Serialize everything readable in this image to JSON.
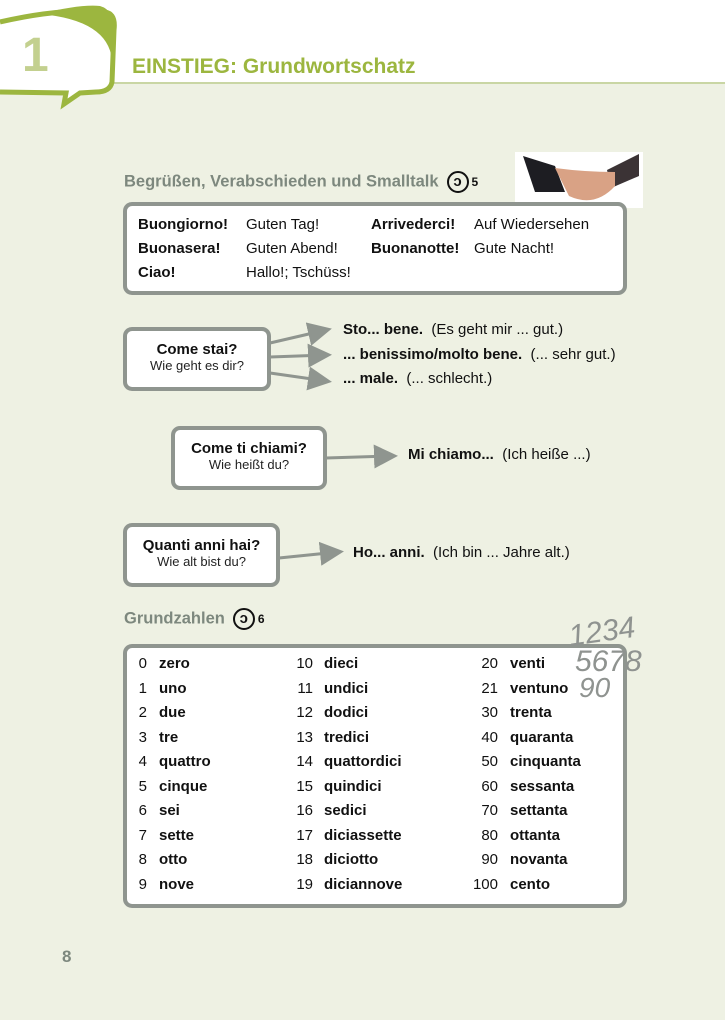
{
  "header": {
    "chapter": "1",
    "title": "EINSTIEG: Grundwortschatz"
  },
  "greetings": {
    "heading": "Begrüßen, Verabschieden und Smalltalk",
    "audio_track": "5",
    "rows": [
      {
        "it1": "Buongiorno!",
        "de1": "Guten Tag!",
        "it2": "Arrivederci!",
        "de2": "Auf Wiedersehen"
      },
      {
        "it1": "Buonasera!",
        "de1": "Guten Abend!",
        "it2": "Buonanotte!",
        "de2": "Gute Nacht!"
      },
      {
        "it1": "Ciao!",
        "de1": "Hallo!; Tschüss!"
      }
    ]
  },
  "dialogs": [
    {
      "q": "Come stai?",
      "q_de": "Wie geht es dir?",
      "answers": [
        {
          "it": "Sto... bene.",
          "de": "(Es geht mir ... gut.)"
        },
        {
          "it": "... benissimo/molto bene.",
          "de": "(... sehr gut.)"
        },
        {
          "it": "... male.",
          "de": "(... schlecht.)"
        }
      ]
    },
    {
      "q": "Come ti chiami?",
      "q_de": "Wie heißt du?",
      "answers": [
        {
          "it": "Mi chiamo...",
          "de": "(Ich heiße ...)"
        }
      ]
    },
    {
      "q": "Quanti anni hai?",
      "q_de": "Wie alt bist du?",
      "answers": [
        {
          "it": "Ho... anni.",
          "de": "(Ich bin ... Jahre alt.)"
        }
      ]
    }
  ],
  "numbers": {
    "heading": "Grundzahlen",
    "audio_track": "6",
    "columns": [
      [
        [
          "0",
          "zero"
        ],
        [
          "1",
          "uno"
        ],
        [
          "2",
          "due"
        ],
        [
          "3",
          "tre"
        ],
        [
          "4",
          "quattro"
        ],
        [
          "5",
          "cinque"
        ],
        [
          "6",
          "sei"
        ],
        [
          "7",
          "sette"
        ],
        [
          "8",
          "otto"
        ],
        [
          "9",
          "nove"
        ]
      ],
      [
        [
          "10",
          "dieci"
        ],
        [
          "11",
          "undici"
        ],
        [
          "12",
          "dodici"
        ],
        [
          "13",
          "tredici"
        ],
        [
          "14",
          "quattordici"
        ],
        [
          "15",
          "quindici"
        ],
        [
          "16",
          "sedici"
        ],
        [
          "17",
          "diciassette"
        ],
        [
          "18",
          "diciotto"
        ],
        [
          "19",
          "diciannove"
        ]
      ],
      [
        [
          "20",
          "venti"
        ],
        [
          "21",
          "ventuno"
        ],
        [
          "30",
          "trenta"
        ],
        [
          "40",
          "quaranta"
        ],
        [
          "50",
          "cinquanta"
        ],
        [
          "60",
          "sessanta"
        ],
        [
          "70",
          "settanta"
        ],
        [
          "80",
          "ottanta"
        ],
        [
          "90",
          "novanta"
        ],
        [
          "100",
          "cento"
        ]
      ]
    ]
  },
  "page_number": "8",
  "colors": {
    "accent": "#9cb63f",
    "border": "#8f958f",
    "background": "#eef1e3"
  }
}
